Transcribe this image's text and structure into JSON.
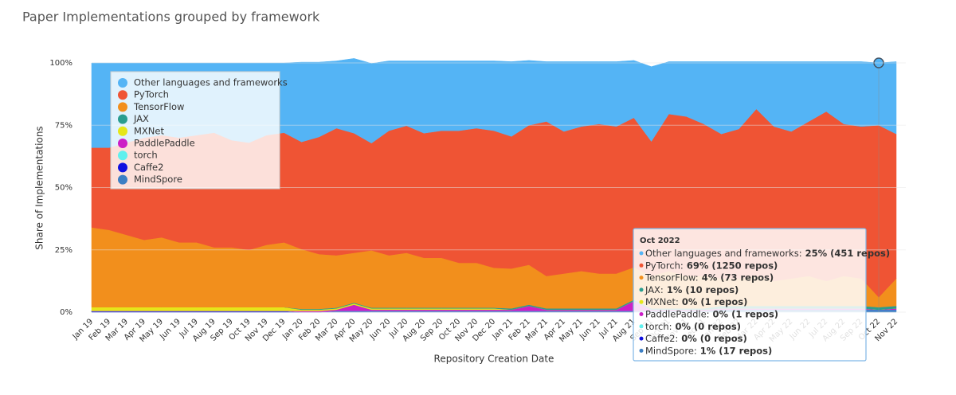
{
  "chart_data": {
    "type": "stacked-area",
    "title": "Paper Implementations grouped by framework",
    "y_label": "Share of Implementations",
    "x_label": "Repository Creation Date",
    "categories": [
      "Jan 19",
      "Feb 19",
      "Mar 19",
      "Apr 19",
      "May 19",
      "Jun 19",
      "Jul 19",
      "Aug 19",
      "Sep 19",
      "Oct 19",
      "Nov 19",
      "Dec 19",
      "Jan 20",
      "Feb 20",
      "Mar 20",
      "Apr 20",
      "May 20",
      "Jun 20",
      "Jul 20",
      "Aug 20",
      "Sep 20",
      "Oct 20",
      "Nov 20",
      "Dec 20",
      "Jan 21",
      "Feb 21",
      "Mar 21",
      "Apr 21",
      "May 21",
      "Jun 21",
      "Jul 21",
      "Aug 21",
      "Sep 21",
      "Oct 21",
      "Nov 21",
      "Dec 21",
      "Jan 22",
      "Feb 22",
      "Mar 22",
      "Apr 22",
      "May 22",
      "Jun 22",
      "Jul 22",
      "Aug 22",
      "Sep 22",
      "Oct 22",
      "Nov 22"
    ],
    "ylim": [
      0,
      100
    ],
    "yticks": [
      {
        "value": 0,
        "label": "0%"
      },
      {
        "value": 25,
        "label": "25%"
      },
      {
        "value": 50,
        "label": "50%"
      },
      {
        "value": 75,
        "label": "75%"
      },
      {
        "value": 100,
        "label": "100%"
      }
    ],
    "grid": true,
    "legend": "top-left",
    "series": [
      {
        "name": "Other languages and frameworks",
        "color": "#54b4f5",
        "values": [
          34,
          34,
          32,
          30,
          29,
          30,
          29,
          28,
          31,
          32,
          29,
          28,
          32,
          30,
          27,
          30,
          32,
          28,
          26,
          29,
          28,
          28,
          27,
          28,
          30,
          26,
          24,
          28,
          26,
          25,
          26,
          23,
          30,
          21,
          22,
          25,
          29,
          27,
          19,
          26,
          28,
          24,
          20,
          25,
          26,
          25,
          29
        ]
      },
      {
        "name": "PyTorch",
        "color": "#ef5434",
        "values": [
          32,
          33,
          37,
          41,
          41,
          42,
          43,
          46,
          43,
          43,
          44,
          44,
          43,
          47,
          51,
          48,
          43,
          50,
          51,
          50,
          51,
          53,
          54,
          55,
          53,
          56,
          62,
          57,
          58,
          60,
          59,
          60,
          54,
          63,
          64,
          61,
          58,
          60,
          67,
          62,
          59,
          62,
          68,
          61,
          61,
          69,
          58
        ]
      },
      {
        "name": "TensorFlow",
        "color": "#f28f1c",
        "values": [
          32,
          31,
          29,
          27,
          28,
          26,
          26,
          24,
          24,
          23,
          25,
          26,
          24,
          22,
          21,
          20,
          23,
          21,
          22,
          20,
          20,
          18,
          18,
          16,
          16,
          16,
          13,
          14,
          15,
          14,
          14,
          13,
          13,
          15,
          13,
          13,
          11,
          11,
          12,
          10,
          11,
          12,
          10,
          12,
          11,
          4,
          11
        ]
      },
      {
        "name": "JAX",
        "color": "#2a9d8f",
        "values": [
          0,
          0,
          0,
          0,
          0,
          0,
          0,
          0,
          0,
          0,
          0,
          0,
          0.3,
          0.3,
          0.3,
          0.3,
          0.3,
          0.3,
          0.3,
          0.3,
          0.3,
          0.3,
          0.3,
          0.3,
          0.5,
          0.5,
          0.5,
          0.5,
          0.5,
          0.5,
          0.5,
          0.5,
          0.5,
          0.5,
          0.5,
          0.5,
          1,
          1,
          1,
          1,
          1,
          1,
          1,
          1,
          1,
          1,
          1
        ]
      },
      {
        "name": "MXNet",
        "color": "#e6e619",
        "values": [
          1.5,
          1.5,
          1.5,
          1.5,
          1.5,
          1.5,
          1.5,
          1.5,
          1.5,
          1.5,
          1.5,
          1.5,
          0.5,
          0.5,
          0.5,
          0.5,
          0.5,
          0.5,
          0.5,
          0.5,
          0.5,
          0.5,
          0.5,
          0.5,
          0,
          0,
          0,
          0,
          0,
          0,
          0,
          0,
          0,
          0,
          0,
          0,
          0,
          0,
          0,
          0,
          0,
          0,
          0,
          0,
          0,
          0,
          0
        ]
      },
      {
        "name": "PaddlePaddle",
        "color": "#cc1fc6",
        "values": [
          0,
          0,
          0,
          0,
          0,
          0,
          0,
          0,
          0,
          0,
          0,
          0,
          0.5,
          0.5,
          0.5,
          2.5,
          0.5,
          0.5,
          0.5,
          0.5,
          0.5,
          0.5,
          0.5,
          0.5,
          0.5,
          2,
          0.5,
          0.5,
          0.5,
          0.5,
          0.5,
          4,
          0.5,
          0.5,
          0.5,
          0.5,
          0.5,
          0.5,
          0.5,
          0.5,
          0.5,
          0.5,
          0.5,
          0.5,
          0.5,
          0,
          0.5
        ]
      },
      {
        "name": "torch",
        "color": "#5ff0ee",
        "values": [
          0,
          0,
          0,
          0,
          0,
          0,
          0,
          0,
          0,
          0,
          0,
          0,
          0,
          0,
          0,
          0,
          0,
          0,
          0,
          0,
          0,
          0,
          0,
          0,
          0,
          0,
          0,
          0,
          0,
          0,
          0,
          0,
          0,
          0,
          0,
          0,
          0,
          0,
          0,
          0,
          0,
          0,
          0,
          0,
          0,
          0,
          0
        ]
      },
      {
        "name": "Caffe2",
        "color": "#1010e0",
        "values": [
          0.5,
          0.5,
          0.5,
          0.5,
          0.5,
          0.5,
          0.5,
          0.5,
          0.5,
          0.5,
          0.5,
          0.5,
          0,
          0,
          0,
          0,
          0,
          0,
          0,
          0,
          0,
          0,
          0,
          0,
          0,
          0,
          0,
          0,
          0,
          0,
          0,
          0,
          0,
          0,
          0,
          0,
          0,
          0,
          0,
          0,
          0,
          0,
          0,
          0,
          0,
          0,
          0
        ]
      },
      {
        "name": "MindSpore",
        "color": "#3c7fc4",
        "values": [
          0,
          0,
          0,
          0,
          0,
          0,
          0,
          0,
          0,
          0,
          0,
          0,
          0,
          0,
          0.5,
          0.5,
          0.5,
          0.5,
          0.5,
          0.5,
          0.5,
          0.5,
          0.5,
          0.5,
          0.5,
          0.5,
          0.5,
          0.5,
          0.5,
          0.5,
          0.5,
          0.5,
          0.5,
          0.5,
          0.5,
          0.5,
          1,
          1,
          1,
          1,
          1,
          1,
          1,
          1,
          1,
          1,
          1
        ]
      }
    ],
    "tooltip": {
      "title": "Oct 2022",
      "items": [
        {
          "label": "Other languages and frameworks:",
          "value": "25% (451 repos)"
        },
        {
          "label": "PyTorch:",
          "value": "69% (1250 repos)"
        },
        {
          "label": "TensorFlow:",
          "value": "4% (73 repos)"
        },
        {
          "label": "JAX:",
          "value": "1% (10 repos)"
        },
        {
          "label": "MXNet:",
          "value": "0% (1 repos)"
        },
        {
          "label": "PaddlePaddle:",
          "value": "0% (1 repos)"
        },
        {
          "label": "torch:",
          "value": "0% (0 repos)"
        },
        {
          "label": "Caffe2:",
          "value": "0% (0 repos)"
        },
        {
          "label": "MindSpore:",
          "value": "1% (17 repos)"
        }
      ]
    }
  }
}
